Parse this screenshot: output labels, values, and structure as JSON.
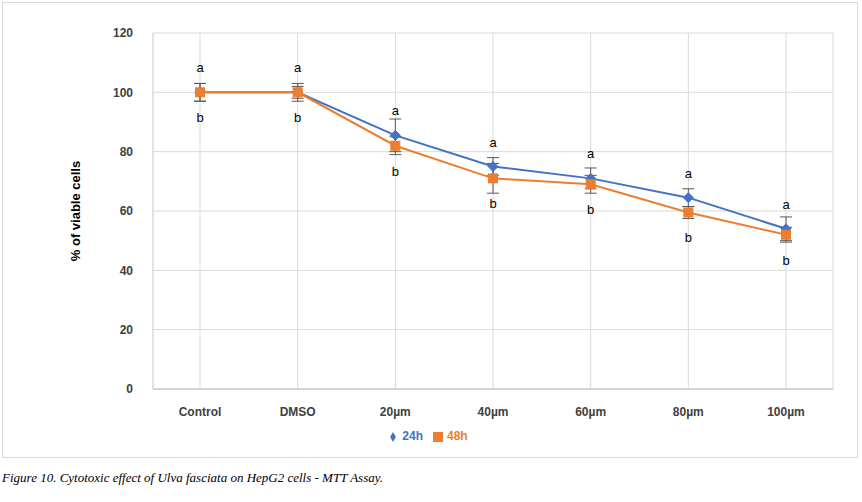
{
  "chart_data": {
    "type": "line",
    "caption": "Figure 10. Cytotoxic effect of Ulva fasciata on HepG2 cells - MTT Assay.",
    "y_label": "% of viable cells",
    "categories": [
      "Control",
      "DMSO",
      "20µm",
      "40µm",
      "60µm",
      "80µm",
      "100µm"
    ],
    "series": [
      {
        "name": "24h",
        "color": "#4472c4",
        "marker": "diamond",
        "values": [
          100,
          100,
          85.5,
          75,
          71,
          64.5,
          54
        ],
        "errors": [
          3,
          3,
          5.5,
          3,
          3.5,
          3,
          4
        ],
        "point_letters": [
          "a",
          "a",
          "a",
          "a",
          "a",
          "a",
          "a"
        ],
        "letter_side": "above"
      },
      {
        "name": "48h",
        "color": "#ed7d31",
        "marker": "square",
        "values": [
          100,
          100,
          82,
          71,
          69,
          59.5,
          52
        ],
        "errors": [
          3,
          2,
          3,
          5,
          3,
          2,
          2.5
        ],
        "point_letters": [
          "b",
          "b",
          "b",
          "b",
          "b",
          "b",
          "b"
        ],
        "letter_side": "below"
      }
    ],
    "ylim": [
      0,
      120
    ],
    "yticks": [
      0,
      20,
      40,
      60,
      80,
      100,
      120
    ],
    "grid": true,
    "legend": "bottom"
  }
}
